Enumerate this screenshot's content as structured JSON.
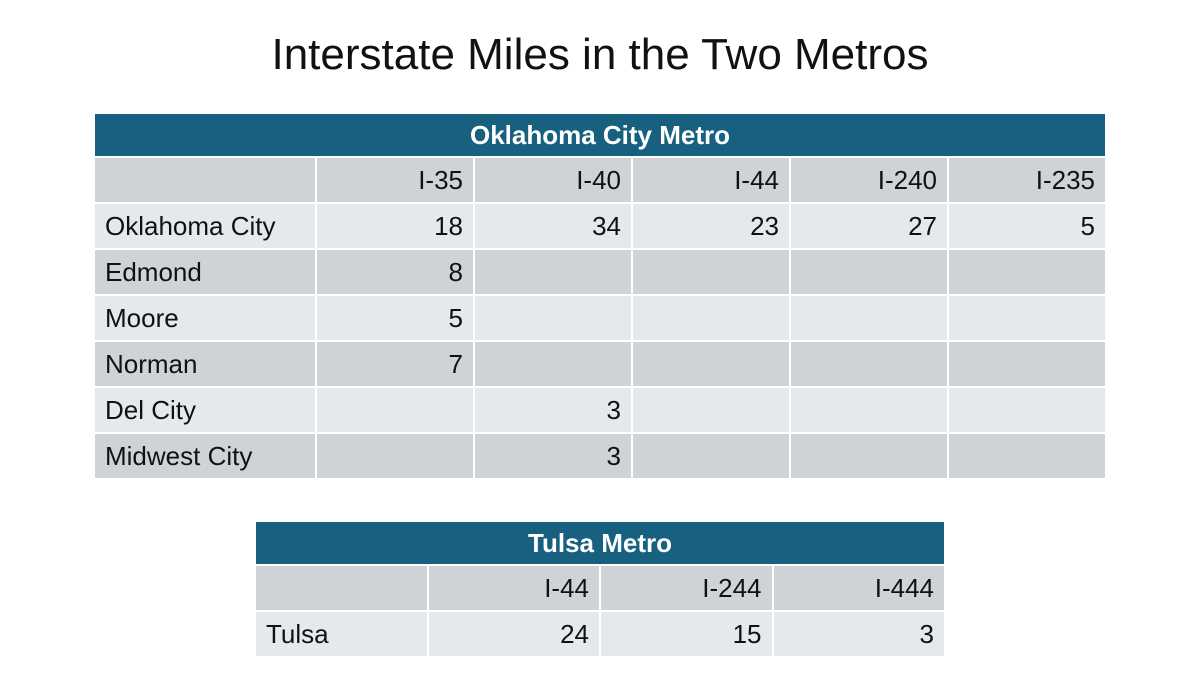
{
  "title": "Interstate Miles in the Two Metros",
  "okc": {
    "heading": "Oklahoma City Metro",
    "columns": [
      "",
      "I-35",
      "I-40",
      "I-44",
      "I-240",
      "I-235"
    ],
    "rows": [
      {
        "city": "Oklahoma City",
        "values": [
          "18",
          "34",
          "23",
          "27",
          "5"
        ]
      },
      {
        "city": "Edmond",
        "values": [
          "8",
          "",
          "",
          "",
          ""
        ]
      },
      {
        "city": "Moore",
        "values": [
          "5",
          "",
          "",
          "",
          ""
        ]
      },
      {
        "city": "Norman",
        "values": [
          "7",
          "",
          "",
          "",
          ""
        ]
      },
      {
        "city": "Del City",
        "values": [
          "",
          "3",
          "",
          "",
          ""
        ]
      },
      {
        "city": "Midwest City",
        "values": [
          "",
          "3",
          "",
          "",
          ""
        ]
      }
    ]
  },
  "tulsa": {
    "heading": "Tulsa Metro",
    "columns": [
      "",
      "I-44",
      "I-244",
      "I-444"
    ],
    "rows": [
      {
        "city": "Tulsa",
        "values": [
          "24",
          "15",
          "3"
        ]
      }
    ]
  },
  "colors": {
    "banner": "#17607f",
    "row_dark": "#cfd3d8",
    "row_light": "#e6e9ec"
  }
}
